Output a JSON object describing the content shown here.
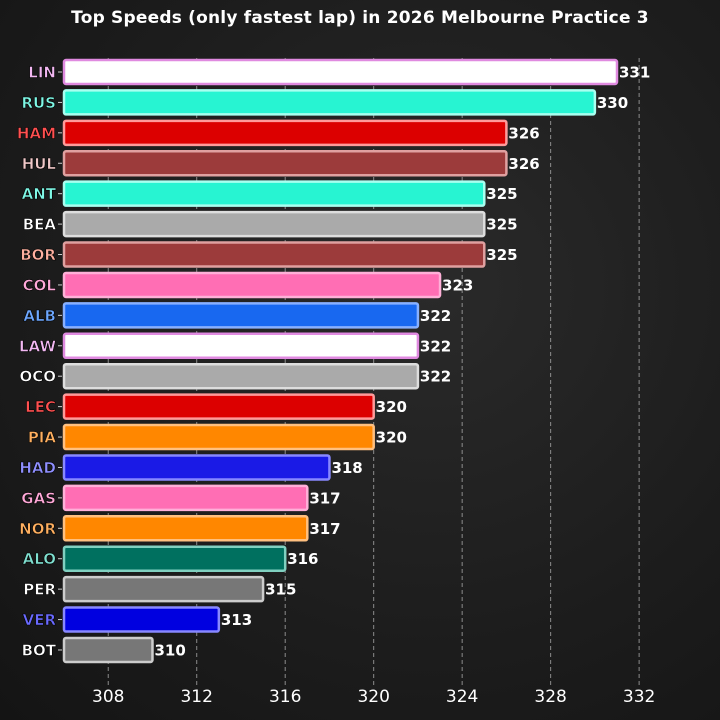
{
  "chart_data": {
    "type": "bar",
    "orientation": "horizontal",
    "title": "Top Speeds (only fastest lap) in 2026 Melbourne Practice 3",
    "xlabel": "",
    "ylabel": "",
    "xlim": [
      306,
      333
    ],
    "xticks": [
      308,
      312,
      316,
      320,
      324,
      328,
      332
    ],
    "grid": "vertical dashed",
    "categories": [
      "LIN",
      "RUS",
      "HAM",
      "HUL",
      "ANT",
      "BEA",
      "BOR",
      "COL",
      "ALB",
      "LAW",
      "OCO",
      "LEC",
      "PIA",
      "HAD",
      "GAS",
      "NOR",
      "ALO",
      "PER",
      "VER",
      "BOT"
    ],
    "values": [
      331,
      330,
      326,
      326,
      325,
      325,
      325,
      323,
      322,
      322,
      322,
      320,
      320,
      318,
      317,
      317,
      316,
      315,
      313,
      310
    ],
    "colors": [
      "#ffffff",
      "#27f4d2",
      "#dc0000",
      "#9c3b3b",
      "#27f4d2",
      "#aaaaaa",
      "#9c3b3b",
      "#ff6eb4",
      "#1868f0",
      "#ffffff",
      "#aaaaaa",
      "#dc0000",
      "#ff8700",
      "#1a1ae6",
      "#ff6eb4",
      "#ff8700",
      "#00705f",
      "#777777",
      "#0000e0",
      "#777777"
    ],
    "edge_colors": [
      "#e08ae0",
      "#a8fff0",
      "#ff9a9a",
      "#e0a0a0",
      "#a8fff0",
      "#dddddd",
      "#e0a0a0",
      "#ffb0d8",
      "#88b0ff",
      "#e08ae0",
      "#dddddd",
      "#ff9a9a",
      "#ffc080",
      "#8888ff",
      "#ffb0d8",
      "#ffc080",
      "#80d0c0",
      "#cccccc",
      "#8888ff",
      "#cccccc"
    ],
    "label_colors": [
      "#f2b8f2",
      "#7ff8e6",
      "#ff5050",
      "#f0c8c8",
      "#7ff8e6",
      "#ffffff",
      "#ffb0a0",
      "#ffa8d8",
      "#6ea8ff",
      "#f2b8f2",
      "#ffffff",
      "#ff5050",
      "#ffb060",
      "#9090ff",
      "#ffa8d8",
      "#ffb060",
      "#80e0d0",
      "#ffffff",
      "#6a6aff",
      "#ffffff"
    ]
  }
}
